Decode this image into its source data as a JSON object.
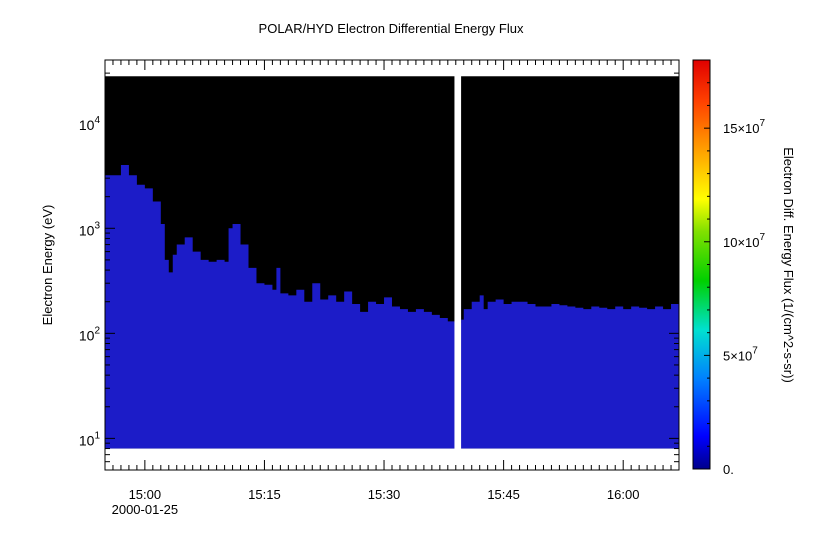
{
  "chart_data": {
    "type": "heatmap",
    "title": "POLAR/HYD  Electron Differential Energy Flux",
    "xlabel": "",
    "ylabel": "Electron Energy (eV)",
    "y_scale": "log",
    "ylim": [
      5,
      40000
    ],
    "x_range": [
      "14:55",
      "16:07"
    ],
    "x_ticks": [
      {
        "time": "15:00",
        "label": "15:00"
      },
      {
        "time": "15:15",
        "label": "15:15"
      },
      {
        "time": "15:30",
        "label": "15:30"
      },
      {
        "time": "15:45",
        "label": "15:45"
      },
      {
        "time": "16:00",
        "label": "16:00"
      }
    ],
    "date_label": "2000-01-25",
    "y_ticks": [
      {
        "base": "10",
        "exp": "1",
        "value": 10
      },
      {
        "base": "10",
        "exp": "2",
        "value": 100
      },
      {
        "base": "10",
        "exp": "3",
        "value": 1000
      },
      {
        "base": "10",
        "exp": "4",
        "value": 10000
      }
    ],
    "colorbar": {
      "label": "Electron Diff. Energy Flux (1/(cm^2-s-sr))",
      "range": [
        0,
        180000000
      ],
      "ticks": [
        {
          "value": 0,
          "base": "0.",
          "exp": ""
        },
        {
          "value": 50000000,
          "base": "5×10",
          "exp": "7"
        },
        {
          "value": 100000000,
          "base": "10×10",
          "exp": "7"
        },
        {
          "value": 150000000,
          "base": "15×10",
          "exp": "7"
        }
      ]
    },
    "data_energy_range": [
      8,
      28000
    ],
    "no_data_color": "#000000",
    "data_gap": [
      "15:38:50",
      "15:39:40"
    ],
    "flux_level": 14000000,
    "upper_energy_boundary": {
      "time": [
        "14:56:00",
        "14:57:00",
        "14:58:00",
        "14:59:00",
        "15:00:00",
        "15:01:00",
        "15:02:00",
        "15:02:30",
        "15:03:00",
        "15:03:30",
        "15:04:00",
        "15:05:00",
        "15:06:00",
        "15:07:00",
        "15:08:00",
        "15:09:00",
        "15:10:00",
        "15:10:30",
        "15:11:00",
        "15:12:00",
        "15:13:00",
        "15:14:00",
        "15:15:00",
        "15:16:00",
        "15:16:30",
        "15:17:00",
        "15:18:00",
        "15:19:00",
        "15:20:00",
        "15:21:00",
        "15:22:00",
        "15:23:00",
        "15:24:00",
        "15:25:00",
        "15:26:00",
        "15:27:00",
        "15:28:00",
        "15:29:00",
        "15:30:00",
        "15:31:00",
        "15:32:00",
        "15:33:00",
        "15:34:00",
        "15:35:00",
        "15:36:00",
        "15:37:00",
        "15:38:00",
        "15:38:50",
        "15:39:40",
        "15:40:00",
        "15:41:00",
        "15:42:00",
        "15:42:30",
        "15:43:00",
        "15:44:00",
        "15:45:00",
        "15:46:00",
        "15:47:00",
        "15:48:00",
        "15:49:00",
        "15:50:00",
        "15:51:00",
        "15:52:00",
        "15:53:00",
        "15:54:00",
        "15:55:00",
        "15:56:00",
        "15:57:00",
        "15:58:00",
        "15:59:00",
        "16:00:00",
        "16:01:00",
        "16:02:00",
        "16:03:00",
        "16:04:00",
        "16:05:00",
        "16:06:00",
        "16:07:00"
      ],
      "energy_eV": [
        3200,
        4000,
        3200,
        2600,
        2400,
        1800,
        1100,
        500,
        380,
        560,
        700,
        820,
        600,
        500,
        480,
        500,
        480,
        1000,
        1100,
        700,
        420,
        300,
        290,
        260,
        420,
        240,
        230,
        260,
        200,
        300,
        210,
        230,
        200,
        250,
        190,
        160,
        200,
        190,
        220,
        180,
        170,
        160,
        170,
        160,
        150,
        140,
        130,
        125,
        135,
        170,
        200,
        230,
        170,
        200,
        210,
        190,
        200,
        200,
        190,
        180,
        180,
        190,
        185,
        180,
        175,
        170,
        180,
        175,
        170,
        180,
        170,
        180,
        175,
        170,
        180,
        170,
        190,
        200
      ]
    }
  }
}
